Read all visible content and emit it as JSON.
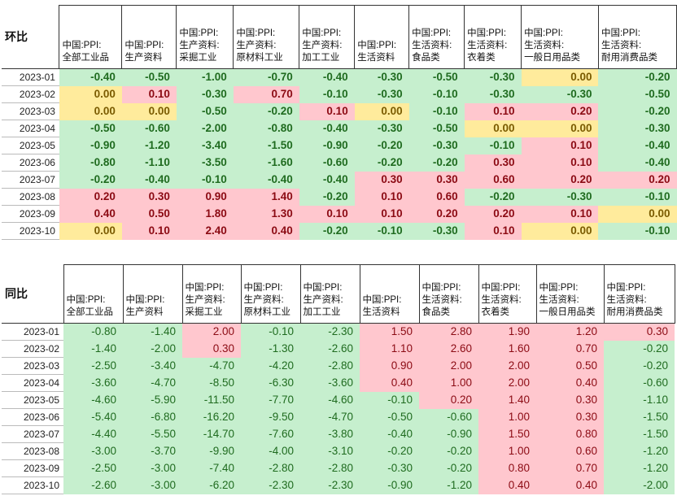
{
  "tables": [
    {
      "title": "环比",
      "columns": [
        [
          "中国:PPI:",
          "全部工业品"
        ],
        [
          "中国:PPI:",
          "生产资料"
        ],
        [
          "中国:PPI:",
          "生产资料:",
          "采掘工业"
        ],
        [
          "中国:PPI:",
          "生产资料:",
          "原材料工业"
        ],
        [
          "中国:PPI:",
          "生产资料:",
          "加工工业"
        ],
        [
          "中国:PPI:",
          "生活资料"
        ],
        [
          "中国:PPI:",
          "生活资料:",
          "食品类"
        ],
        [
          "中国:PPI:",
          "生活资料:",
          "衣着类"
        ],
        [
          "中国:PPI:",
          "生活资料:",
          "一般日用品类"
        ],
        [
          "中国:PPI:",
          "生活资料:",
          "耐用消费品类"
        ]
      ],
      "rows": [
        {
          "date": "2023-01",
          "values": [
            "-0.40",
            "-0.50",
            "-1.00",
            "-0.70",
            "-0.40",
            "-0.30",
            "-0.50",
            "-0.30",
            "0.00",
            "-0.20"
          ]
        },
        {
          "date": "2023-02",
          "values": [
            "0.00",
            "0.10",
            "-0.30",
            "0.70",
            "-0.10",
            "-0.30",
            "-0.10",
            "-0.30",
            "-0.30",
            "-0.50"
          ]
        },
        {
          "date": "2023-03",
          "values": [
            "0.00",
            "0.00",
            "-0.50",
            "-0.20",
            "0.10",
            "0.00",
            "-0.10",
            "0.10",
            "0.20",
            "-0.20"
          ]
        },
        {
          "date": "2023-04",
          "values": [
            "-0.50",
            "-0.60",
            "-2.00",
            "-0.80",
            "-0.40",
            "-0.30",
            "-0.50",
            "0.00",
            "0.00",
            "-0.30"
          ]
        },
        {
          "date": "2023-05",
          "values": [
            "-0.90",
            "-1.20",
            "-3.40",
            "-1.50",
            "-0.90",
            "-0.20",
            "-0.30",
            "-0.10",
            "0.10",
            "-0.40"
          ]
        },
        {
          "date": "2023-06",
          "values": [
            "-0.80",
            "-1.10",
            "-3.50",
            "-1.60",
            "-0.60",
            "-0.20",
            "-0.20",
            "0.30",
            "0.10",
            "-0.40"
          ]
        },
        {
          "date": "2023-07",
          "values": [
            "-0.20",
            "-0.40",
            "-0.10",
            "-0.40",
            "-0.40",
            "0.30",
            "0.30",
            "0.60",
            "0.20",
            "0.20"
          ]
        },
        {
          "date": "2023-08",
          "values": [
            "0.20",
            "0.30",
            "0.90",
            "1.40",
            "-0.20",
            "0.10",
            "0.60",
            "-0.20",
            "-0.30",
            "-0.10"
          ]
        },
        {
          "date": "2023-09",
          "values": [
            "0.40",
            "0.50",
            "1.80",
            "1.30",
            "0.10",
            "0.10",
            "0.20",
            "0.20",
            "0.10",
            "0.00"
          ]
        },
        {
          "date": "2023-10",
          "values": [
            "0.00",
            "0.10",
            "2.40",
            "0.40",
            "-0.20",
            "-0.10",
            "-0.30",
            "0.10",
            "0.00",
            "-0.10"
          ]
        }
      ]
    },
    {
      "title": "同比",
      "columns": [
        [
          "中国:PPI:",
          "全部工业品"
        ],
        [
          "中国:PPI:",
          "生产资料"
        ],
        [
          "中国:PPI:",
          "生产资料:",
          "采掘工业"
        ],
        [
          "中国:PPI:",
          "生产资料:",
          "原材料工业"
        ],
        [
          "中国:PPI:",
          "生产资料:",
          "加工工业"
        ],
        [
          "中国:PPI:",
          "生活资料"
        ],
        [
          "中国:PPI:",
          "生活资料:",
          "食品类"
        ],
        [
          "中国:PPI:",
          "生活资料:",
          "衣着类"
        ],
        [
          "中国:PPI:",
          "生活资料:",
          "一般日用品类"
        ],
        [
          "中国:PPI:",
          "生活资料:",
          "耐用消费品类"
        ]
      ],
      "rows": [
        {
          "date": "2023-01",
          "values": [
            "-0.80",
            "-1.40",
            "2.00",
            "-0.10",
            "-2.30",
            "1.50",
            "2.80",
            "1.90",
            "1.20",
            "0.30"
          ]
        },
        {
          "date": "2023-02",
          "values": [
            "-1.40",
            "-2.00",
            "0.30",
            "-1.30",
            "-2.60",
            "1.10",
            "2.60",
            "1.60",
            "0.70",
            "-0.20"
          ]
        },
        {
          "date": "2023-03",
          "values": [
            "-2.50",
            "-3.40",
            "-4.70",
            "-4.20",
            "-2.80",
            "0.90",
            "2.00",
            "2.00",
            "0.50",
            "-0.20"
          ]
        },
        {
          "date": "2023-04",
          "values": [
            "-3.60",
            "-4.70",
            "-8.50",
            "-6.30",
            "-3.60",
            "0.40",
            "1.00",
            "2.00",
            "0.40",
            "-0.60"
          ]
        },
        {
          "date": "2023-05",
          "values": [
            "-4.60",
            "-5.90",
            "-11.50",
            "-7.70",
            "-4.60",
            "-0.10",
            "0.20",
            "1.40",
            "0.30",
            "-1.10"
          ]
        },
        {
          "date": "2023-06",
          "values": [
            "-5.40",
            "-6.80",
            "-16.20",
            "-9.50",
            "-4.70",
            "-0.50",
            "-0.60",
            "1.00",
            "0.30",
            "-1.50"
          ]
        },
        {
          "date": "2023-07",
          "values": [
            "-4.40",
            "-5.50",
            "-14.70",
            "-7.60",
            "-3.80",
            "-0.40",
            "-0.90",
            "1.50",
            "0.80",
            "-1.50"
          ]
        },
        {
          "date": "2023-08",
          "values": [
            "-3.00",
            "-3.70",
            "-9.90",
            "-4.00",
            "-3.10",
            "-0.20",
            "-0.20",
            "1.00",
            "0.60",
            "-1.20"
          ]
        },
        {
          "date": "2023-09",
          "values": [
            "-2.50",
            "-3.00",
            "-7.40",
            "-2.80",
            "-2.80",
            "-0.30",
            "-0.20",
            "0.80",
            "0.70",
            "-1.20"
          ]
        },
        {
          "date": "2023-10",
          "values": [
            "-2.60",
            "-3.00",
            "-6.20",
            "-2.30",
            "-2.30",
            "-0.90",
            "-1.20",
            "0.40",
            "0.40",
            "-2.00"
          ]
        }
      ]
    }
  ],
  "colors": {
    "negative_bg": "#c6efce",
    "positive_bg": "#ffc7ce",
    "zero_bg": "#ffeb9c"
  }
}
